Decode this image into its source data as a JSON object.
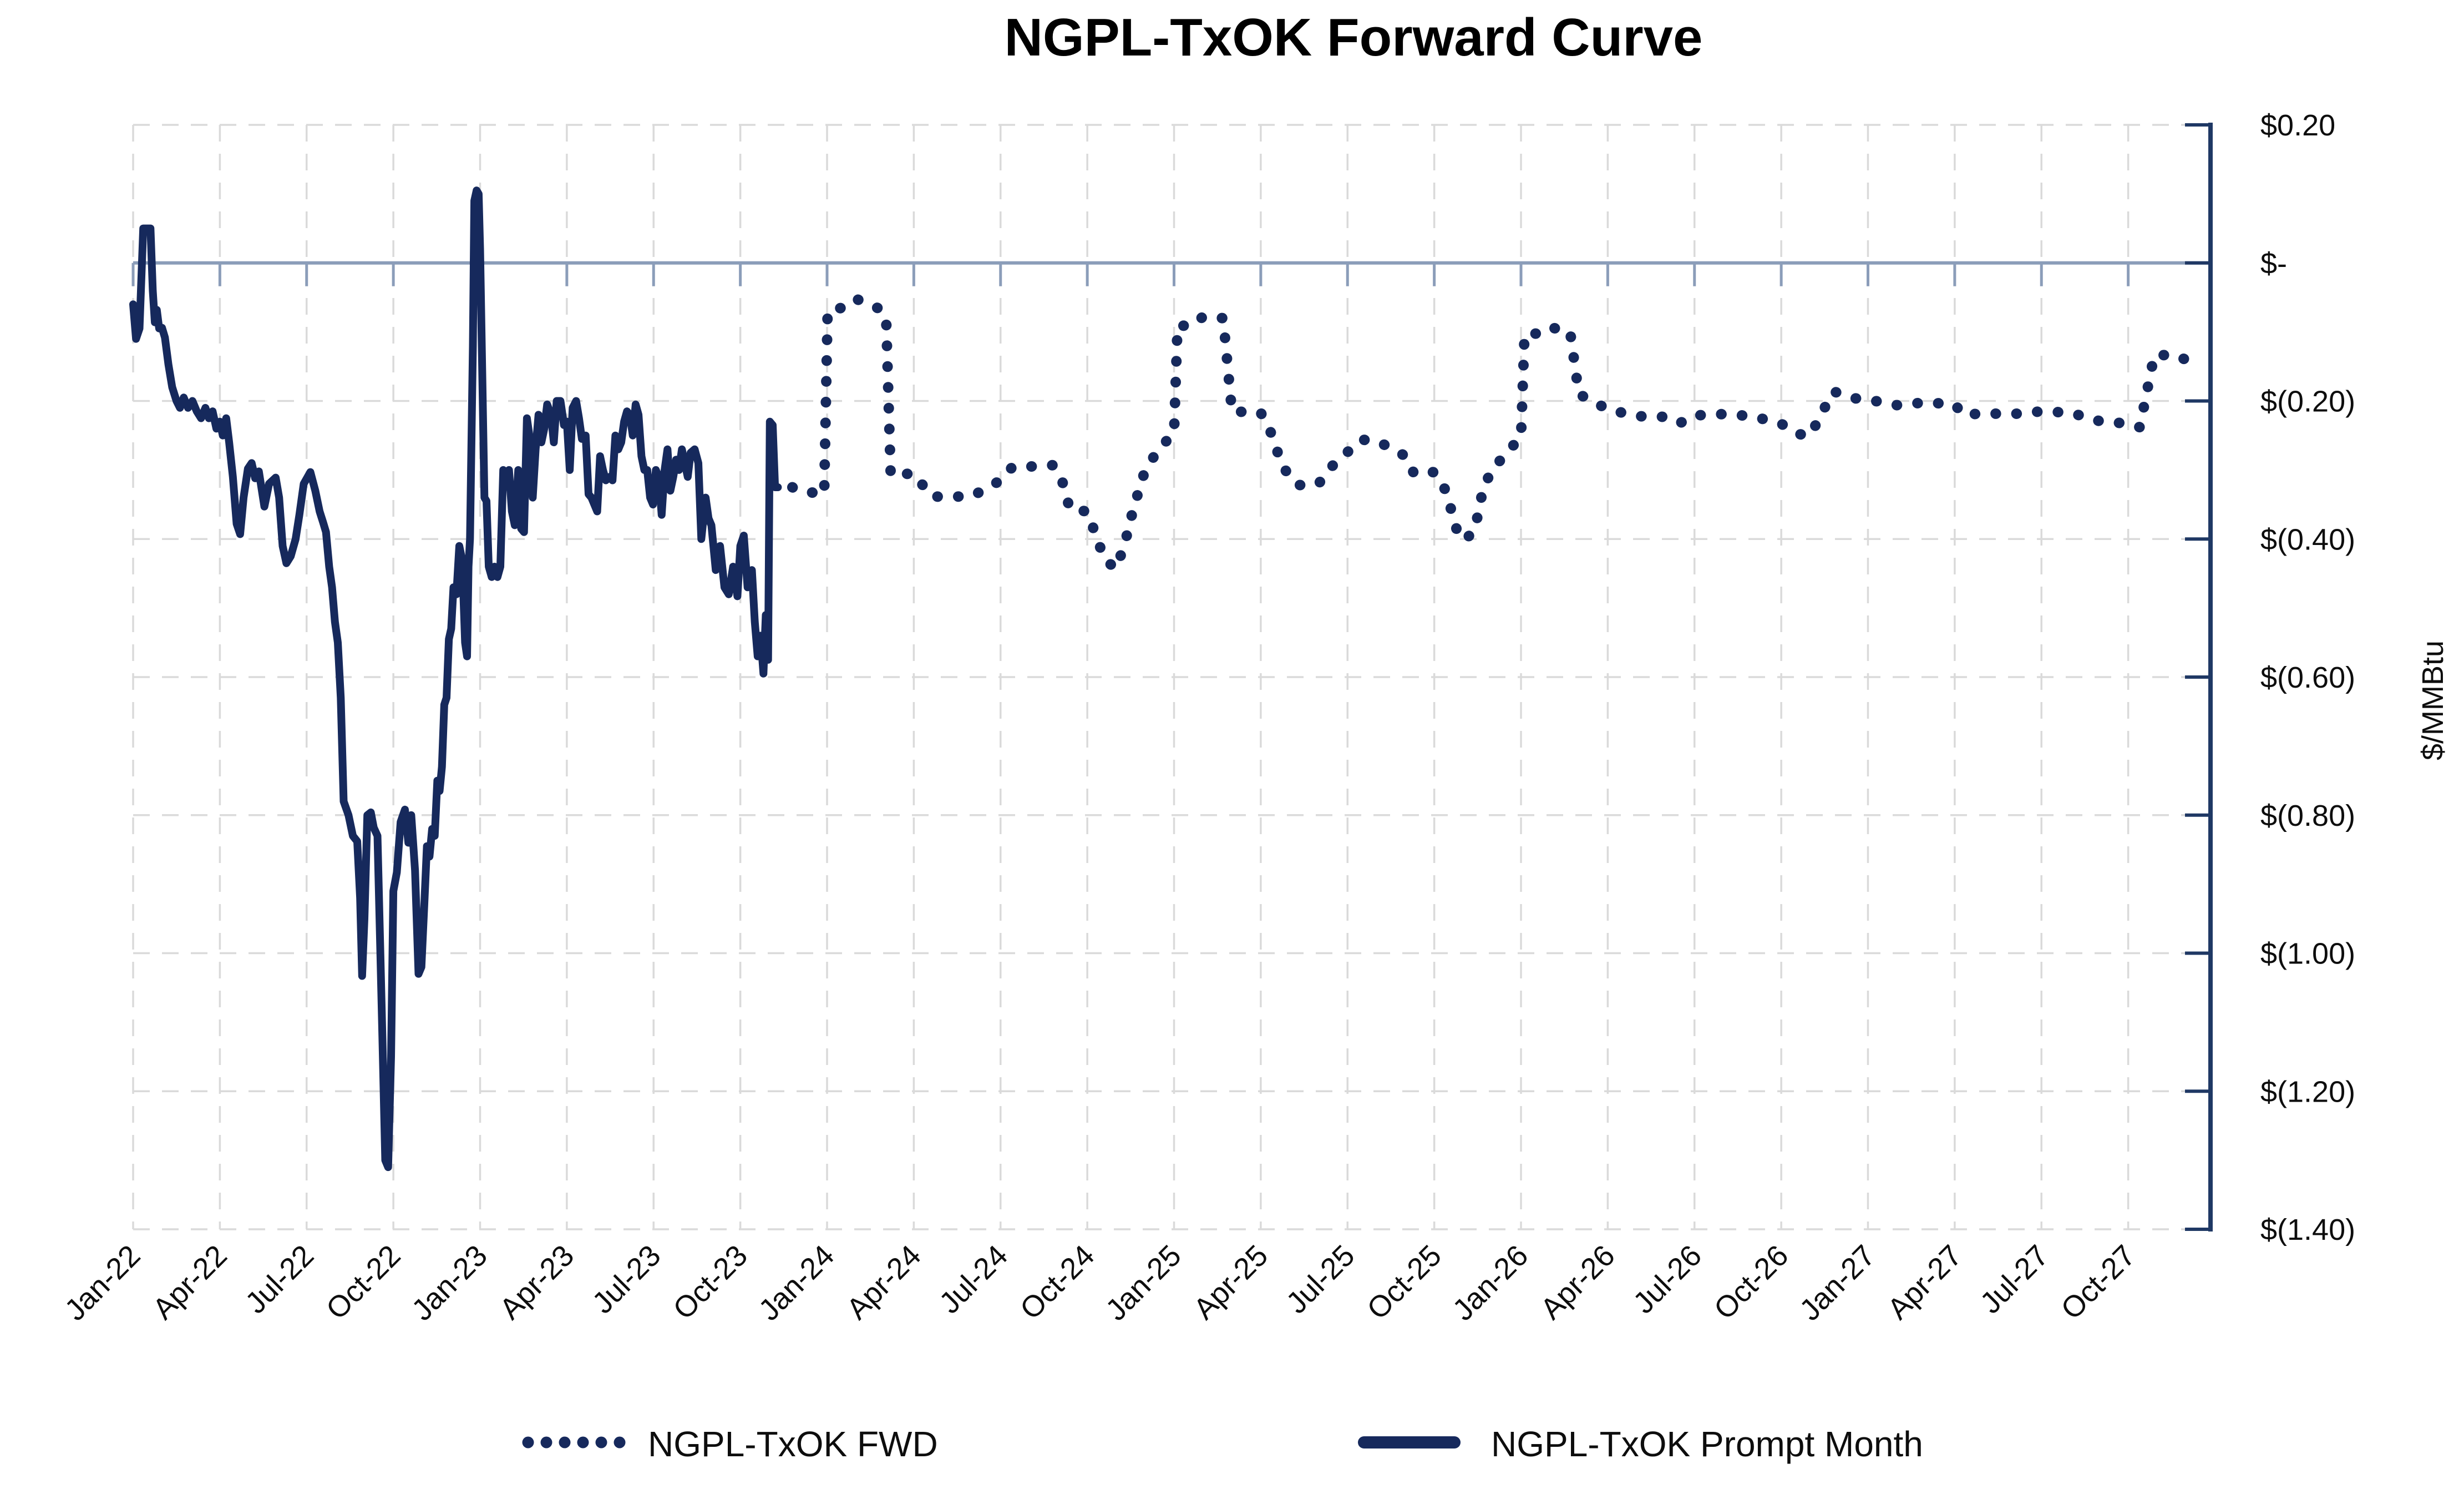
{
  "chart_data": {
    "type": "line",
    "title": "NGPL-TxOK Forward Curve",
    "ylabel": "$/MMBtu",
    "grid": "dashed-light-gray",
    "legend_position": "bottom",
    "colors": {
      "series": "#16295C",
      "zero_axis": "#8B9DB9",
      "right_axis": "#1F3864",
      "gridline": "#DADADA",
      "background": "#FFFFFF",
      "text": "#000000"
    },
    "y_axis": {
      "min": -1.4,
      "max": 0.2,
      "tick_step": 0.2,
      "tick_labels": [
        "$0.20",
        "$-",
        "$(0.20)",
        "$(0.40)",
        "$(0.60)",
        "$(0.80)",
        "$(1.00)",
        "$(1.20)",
        "$(1.40)"
      ]
    },
    "x_axis": {
      "unit": "months since Jan-2022",
      "tick_every_months": 3,
      "tick_labels": [
        "Jan-22",
        "Apr-22",
        "Jul-22",
        "Oct-22",
        "Jan-23",
        "Apr-23",
        "Jul-23",
        "Oct-23",
        "Jan-24",
        "Apr-24",
        "Jul-24",
        "Oct-24",
        "Jan-25",
        "Apr-25",
        "Jul-25",
        "Oct-25",
        "Jan-26",
        "Apr-26",
        "Jul-26",
        "Oct-26",
        "Jan-27",
        "Apr-27",
        "Jul-27",
        "Oct-27"
      ]
    },
    "series": [
      {
        "name": "NGPL-TxOK  FWD",
        "style": "dotted",
        "points": [
          [
            22.8,
            -0.325
          ],
          [
            23,
            -0.33
          ],
          [
            23.9,
            -0.335
          ],
          [
            24.02,
            -0.07
          ],
          [
            24.6,
            -0.064
          ],
          [
            25,
            -0.052
          ],
          [
            25.9,
            -0.068
          ],
          [
            26.05,
            -0.09
          ],
          [
            26.2,
            -0.307
          ],
          [
            27,
            -0.305
          ],
          [
            27.6,
            -0.338
          ],
          [
            28,
            -0.339
          ],
          [
            29,
            -0.338
          ],
          [
            29.5,
            -0.327
          ],
          [
            30,
            -0.315
          ],
          [
            30.4,
            -0.296
          ],
          [
            31,
            -0.295
          ],
          [
            31.8,
            -0.293
          ],
          [
            32.1,
            -0.311
          ],
          [
            32.4,
            -0.357
          ],
          [
            33,
            -0.36
          ],
          [
            33.6,
            -0.43
          ],
          [
            34,
            -0.443
          ],
          [
            34.3,
            -0.406
          ],
          [
            34.6,
            -0.355
          ],
          [
            35,
            -0.3
          ],
          [
            35.5,
            -0.268
          ],
          [
            36,
            -0.247
          ],
          [
            36.12,
            -0.091
          ],
          [
            36.6,
            -0.091
          ],
          [
            37,
            -0.078
          ],
          [
            37.7,
            -0.08
          ],
          [
            38,
            -0.215
          ],
          [
            39,
            -0.217
          ],
          [
            39.4,
            -0.25
          ],
          [
            39.7,
            -0.29
          ],
          [
            40,
            -0.31
          ],
          [
            40.3,
            -0.322
          ],
          [
            41,
            -0.32
          ],
          [
            41.4,
            -0.297
          ],
          [
            42,
            -0.274
          ],
          [
            42.5,
            -0.256
          ],
          [
            43,
            -0.258
          ],
          [
            43.6,
            -0.27
          ],
          [
            44,
            -0.28
          ],
          [
            44.3,
            -0.305
          ],
          [
            45,
            -0.303
          ],
          [
            45.4,
            -0.33
          ],
          [
            45.8,
            -0.39
          ],
          [
            46.05,
            -0.402
          ],
          [
            46.4,
            -0.387
          ],
          [
            46.7,
            -0.325
          ],
          [
            47,
            -0.3
          ],
          [
            47.6,
            -0.27
          ],
          [
            48,
            -0.253
          ],
          [
            48.12,
            -0.104
          ],
          [
            48.6,
            -0.102
          ],
          [
            49,
            -0.093
          ],
          [
            49.7,
            -0.1
          ],
          [
            50,
            -0.19
          ],
          [
            51,
            -0.212
          ],
          [
            52,
            -0.222
          ],
          [
            53,
            -0.223
          ],
          [
            53.5,
            -0.232
          ],
          [
            54,
            -0.221
          ],
          [
            55,
            -0.219
          ],
          [
            56,
            -0.222
          ],
          [
            57,
            -0.233
          ],
          [
            57.6,
            -0.248
          ],
          [
            58,
            -0.25
          ],
          [
            58.8,
            -0.186
          ],
          [
            59.5,
            -0.196
          ],
          [
            60,
            -0.198
          ],
          [
            61,
            -0.206
          ],
          [
            62,
            -0.202
          ],
          [
            63,
            -0.205
          ],
          [
            63.3,
            -0.22
          ],
          [
            64,
            -0.218
          ],
          [
            65,
            -0.219
          ],
          [
            66,
            -0.215
          ],
          [
            67,
            -0.217
          ],
          [
            68,
            -0.229
          ],
          [
            69,
            -0.233
          ],
          [
            69.4,
            -0.238
          ],
          [
            69.9,
            -0.134
          ],
          [
            70.6,
            -0.133
          ],
          [
            71.2,
            -0.144
          ]
        ]
      },
      {
        "name": "NGPL-TxOK Prompt Month",
        "style": "solid",
        "points": [
          [
            0,
            -0.06
          ],
          [
            0.1,
            -0.11
          ],
          [
            0.22,
            -0.095
          ],
          [
            0.35,
            0.05
          ],
          [
            0.6,
            0.05
          ],
          [
            0.68,
            -0.04
          ],
          [
            0.75,
            -0.086
          ],
          [
            0.82,
            -0.068
          ],
          [
            0.9,
            -0.095
          ],
          [
            1.0,
            -0.094
          ],
          [
            1.1,
            -0.108
          ],
          [
            1.22,
            -0.147
          ],
          [
            1.35,
            -0.18
          ],
          [
            1.5,
            -0.2
          ],
          [
            1.62,
            -0.21
          ],
          [
            1.75,
            -0.195
          ],
          [
            1.9,
            -0.21
          ],
          [
            2.05,
            -0.2
          ],
          [
            2.2,
            -0.215
          ],
          [
            2.35,
            -0.225
          ],
          [
            2.5,
            -0.21
          ],
          [
            2.62,
            -0.225
          ],
          [
            2.75,
            -0.215
          ],
          [
            2.88,
            -0.24
          ],
          [
            3.0,
            -0.23
          ],
          [
            3.1,
            -0.25
          ],
          [
            3.22,
            -0.225
          ],
          [
            3.32,
            -0.26
          ],
          [
            3.45,
            -0.31
          ],
          [
            3.58,
            -0.378
          ],
          [
            3.7,
            -0.393
          ],
          [
            3.82,
            -0.34
          ],
          [
            3.97,
            -0.298
          ],
          [
            4.1,
            -0.29
          ],
          [
            4.22,
            -0.312
          ],
          [
            4.35,
            -0.302
          ],
          [
            4.54,
            -0.353
          ],
          [
            4.7,
            -0.32
          ],
          [
            4.93,
            -0.311
          ],
          [
            5.05,
            -0.34
          ],
          [
            5.17,
            -0.41
          ],
          [
            5.3,
            -0.435
          ],
          [
            5.45,
            -0.425
          ],
          [
            5.62,
            -0.4
          ],
          [
            5.75,
            -0.365
          ],
          [
            5.9,
            -0.32
          ],
          [
            6.13,
            -0.303
          ],
          [
            6.3,
            -0.33
          ],
          [
            6.45,
            -0.36
          ],
          [
            6.57,
            -0.376
          ],
          [
            6.67,
            -0.39
          ],
          [
            6.78,
            -0.44
          ],
          [
            6.88,
            -0.47
          ],
          [
            6.98,
            -0.52
          ],
          [
            7.08,
            -0.55
          ],
          [
            7.18,
            -0.63
          ],
          [
            7.28,
            -0.78
          ],
          [
            7.45,
            -0.8
          ],
          [
            7.6,
            -0.83
          ],
          [
            7.75,
            -0.838
          ],
          [
            7.85,
            -0.92
          ],
          [
            7.92,
            -1.033
          ],
          [
            8.0,
            -0.95
          ],
          [
            8.1,
            -0.8
          ],
          [
            8.22,
            -0.796
          ],
          [
            8.32,
            -0.818
          ],
          [
            8.45,
            -0.83
          ],
          [
            8.55,
            -1.0
          ],
          [
            8.62,
            -1.12
          ],
          [
            8.72,
            -1.3
          ],
          [
            8.82,
            -1.31
          ],
          [
            8.92,
            -1.15
          ],
          [
            9.0,
            -0.91
          ],
          [
            9.12,
            -0.883
          ],
          [
            9.25,
            -0.81
          ],
          [
            9.4,
            -0.792
          ],
          [
            9.52,
            -0.84
          ],
          [
            9.62,
            -0.8
          ],
          [
            9.75,
            -0.88
          ],
          [
            9.87,
            -1.03
          ],
          [
            9.97,
            -1.02
          ],
          [
            10.07,
            -0.93
          ],
          [
            10.16,
            -0.845
          ],
          [
            10.25,
            -0.86
          ],
          [
            10.34,
            -0.82
          ],
          [
            10.43,
            -0.83
          ],
          [
            10.52,
            -0.75
          ],
          [
            10.6,
            -0.765
          ],
          [
            10.68,
            -0.73
          ],
          [
            10.76,
            -0.64
          ],
          [
            10.84,
            -0.63
          ],
          [
            10.92,
            -0.545
          ],
          [
            11.0,
            -0.53
          ],
          [
            11.08,
            -0.47
          ],
          [
            11.18,
            -0.48
          ],
          [
            11.28,
            -0.41
          ],
          [
            11.38,
            -0.43
          ],
          [
            11.48,
            -0.55
          ],
          [
            11.55,
            -0.57
          ],
          [
            11.6,
            -0.44
          ],
          [
            11.65,
            -0.4
          ],
          [
            11.7,
            -0.26
          ],
          [
            11.75,
            -0.12
          ],
          [
            11.8,
            0.09
          ],
          [
            11.88,
            0.105
          ],
          [
            11.95,
            0.1
          ],
          [
            12.0,
            0.02
          ],
          [
            12.05,
            -0.1
          ],
          [
            12.1,
            -0.22
          ],
          [
            12.15,
            -0.34
          ],
          [
            12.22,
            -0.345
          ],
          [
            12.3,
            -0.44
          ],
          [
            12.4,
            -0.455
          ],
          [
            12.5,
            -0.44
          ],
          [
            12.6,
            -0.455
          ],
          [
            12.7,
            -0.44
          ],
          [
            12.8,
            -0.3
          ],
          [
            12.9,
            -0.305
          ],
          [
            13.0,
            -0.3
          ],
          [
            13.1,
            -0.36
          ],
          [
            13.2,
            -0.38
          ],
          [
            13.32,
            -0.3
          ],
          [
            13.42,
            -0.385
          ],
          [
            13.52,
            -0.39
          ],
          [
            13.62,
            -0.225
          ],
          [
            13.72,
            -0.255
          ],
          [
            13.82,
            -0.34
          ],
          [
            13.92,
            -0.27
          ],
          [
            14.02,
            -0.22
          ],
          [
            14.12,
            -0.26
          ],
          [
            14.22,
            -0.24
          ],
          [
            14.32,
            -0.205
          ],
          [
            14.45,
            -0.22
          ],
          [
            14.55,
            -0.26
          ],
          [
            14.65,
            -0.2
          ],
          [
            14.78,
            -0.2
          ],
          [
            14.9,
            -0.235
          ],
          [
            15.0,
            -0.23
          ],
          [
            15.1,
            -0.3
          ],
          [
            15.2,
            -0.21
          ],
          [
            15.32,
            -0.2
          ],
          [
            15.42,
            -0.225
          ],
          [
            15.52,
            -0.255
          ],
          [
            15.65,
            -0.25
          ],
          [
            15.75,
            -0.335
          ],
          [
            15.85,
            -0.34
          ],
          [
            15.95,
            -0.35
          ],
          [
            16.05,
            -0.36
          ],
          [
            16.15,
            -0.28
          ],
          [
            16.25,
            -0.3
          ],
          [
            16.35,
            -0.315
          ],
          [
            16.48,
            -0.31
          ],
          [
            16.58,
            -0.315
          ],
          [
            16.68,
            -0.25
          ],
          [
            16.78,
            -0.27
          ],
          [
            16.88,
            -0.26
          ],
          [
            16.98,
            -0.23
          ],
          [
            17.08,
            -0.215
          ],
          [
            17.18,
            -0.22
          ],
          [
            17.28,
            -0.25
          ],
          [
            17.38,
            -0.205
          ],
          [
            17.48,
            -0.22
          ],
          [
            17.58,
            -0.28
          ],
          [
            17.68,
            -0.3
          ],
          [
            17.78,
            -0.3
          ],
          [
            17.88,
            -0.34
          ],
          [
            17.98,
            -0.35
          ],
          [
            18.08,
            -0.3
          ],
          [
            18.18,
            -0.31
          ],
          [
            18.28,
            -0.365
          ],
          [
            18.38,
            -0.3
          ],
          [
            18.48,
            -0.27
          ],
          [
            18.58,
            -0.33
          ],
          [
            18.68,
            -0.31
          ],
          [
            18.78,
            -0.285
          ],
          [
            18.88,
            -0.3
          ],
          [
            18.98,
            -0.27
          ],
          [
            19.08,
            -0.29
          ],
          [
            19.18,
            -0.31
          ],
          [
            19.28,
            -0.275
          ],
          [
            19.42,
            -0.27
          ],
          [
            19.55,
            -0.29
          ],
          [
            19.65,
            -0.4
          ],
          [
            19.8,
            -0.34
          ],
          [
            19.9,
            -0.37
          ],
          [
            20.0,
            -0.38
          ],
          [
            20.15,
            -0.445
          ],
          [
            20.3,
            -0.41
          ],
          [
            20.45,
            -0.47
          ],
          [
            20.6,
            -0.48
          ],
          [
            20.75,
            -0.44
          ],
          [
            20.9,
            -0.483
          ],
          [
            21.0,
            -0.41
          ],
          [
            21.12,
            -0.395
          ],
          [
            21.25,
            -0.47
          ],
          [
            21.4,
            -0.445
          ],
          [
            21.5,
            -0.52
          ],
          [
            21.6,
            -0.57
          ],
          [
            21.7,
            -0.54
          ],
          [
            21.8,
            -0.595
          ],
          [
            21.88,
            -0.51
          ],
          [
            21.96,
            -0.575
          ],
          [
            22.02,
            -0.23
          ],
          [
            22.12,
            -0.235
          ],
          [
            22.2,
            -0.325
          ],
          [
            22.3,
            -0.325
          ]
        ]
      }
    ]
  }
}
